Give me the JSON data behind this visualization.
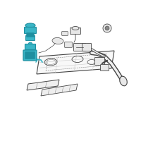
{
  "bg_color": "#ffffff",
  "fig_width": 2.0,
  "fig_height": 2.0,
  "dpi": 100,
  "highlight_color": "#3ab5c6",
  "highlight_dark": "#1e8fa0",
  "line_color": "#444444",
  "light_line": "#888888",
  "very_light": "#cccccc",
  "tank_fill": "#f5f5f5",
  "part_fill": "#e8e8e8"
}
